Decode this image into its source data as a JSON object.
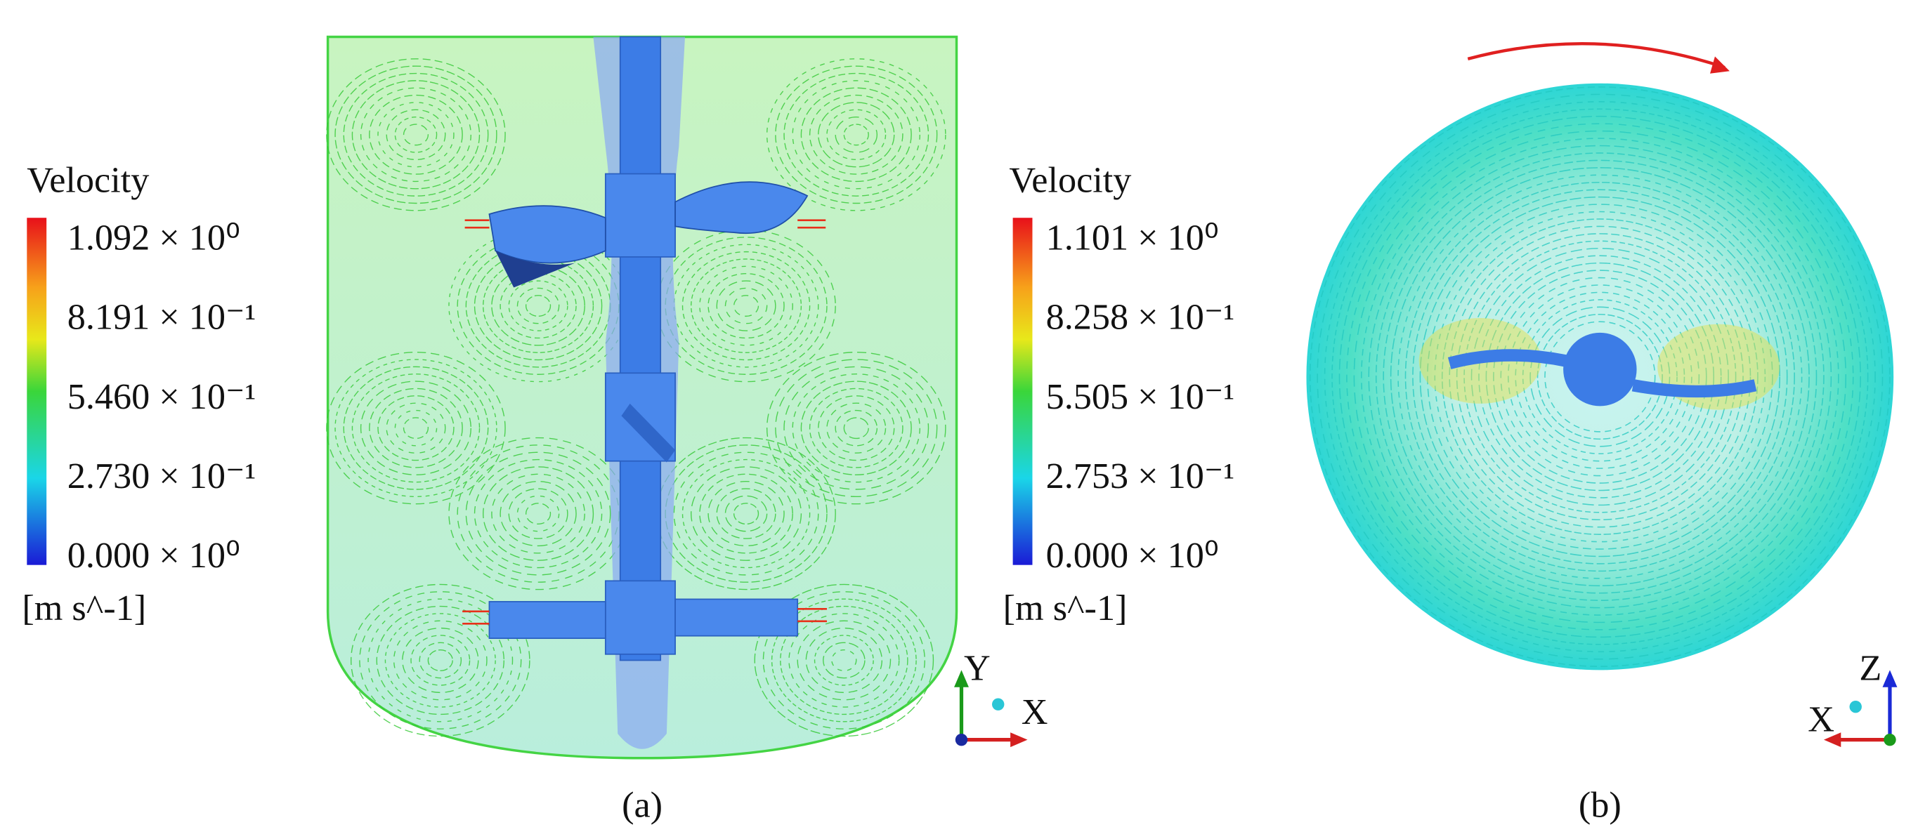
{
  "panels": [
    {
      "legend_title": "Velocity",
      "legend_ticks": [
        "1.092 × 10⁰",
        "8.191 × 10⁻¹",
        "5.460 × 10⁻¹",
        "2.730 × 10⁻¹",
        "0.000 × 10⁰"
      ],
      "unit": "[m s^-1]",
      "axes": [
        "Y",
        "X"
      ],
      "caption": "(a)"
    },
    {
      "legend_title": "Velocity",
      "legend_ticks": [
        "1.101 × 10⁰",
        "8.258 × 10⁻¹",
        "5.505 × 10⁻¹",
        "2.753 × 10⁻¹",
        "0.000 × 10⁰"
      ],
      "unit": "[m s^-1]",
      "axes": [
        "Z",
        "X"
      ],
      "caption": "(b)"
    }
  ]
}
